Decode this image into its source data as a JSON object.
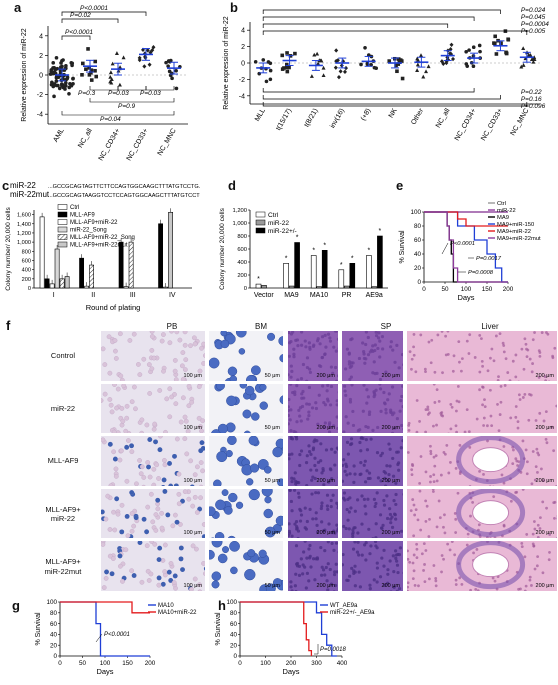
{
  "panels": {
    "a": {
      "label": "a",
      "ylabel": "Relative expression of miR-22",
      "ylim": [
        -5,
        5
      ],
      "yticks": [
        "-4",
        "-2",
        "0",
        "2",
        "4"
      ],
      "categories": [
        "AML",
        "NC_all",
        "NC_CD34+",
        "NC_CD33+",
        "NC_MNC"
      ],
      "pvals_top": [
        "P<0.0001",
        "P=0.02",
        "P<0.0001"
      ],
      "pvals_bottom": [
        "P=0.3",
        "P=0.03",
        "P=0.03",
        "P=0.9",
        "P=0.04"
      ]
    },
    "b": {
      "label": "b",
      "ylabel": "Relative expression of miR-22",
      "ylim": [
        -5,
        5
      ],
      "yticks": [
        "-4",
        "-2",
        "0",
        "2",
        "4"
      ],
      "categories": [
        "MLL",
        "t(15/17)",
        "t(8/21)",
        "inv(16)",
        "(+8)",
        "NK",
        "Other",
        "NC_all",
        "NC_CD34+",
        "NC_CD33+",
        "NC_MNC"
      ],
      "pvals_top": [
        "P=0.024",
        "P=0.045",
        "P=0.0004",
        "P=0.005"
      ],
      "pvals_bottom": [
        "P=0.22",
        "P=0.16",
        "P=0.096"
      ]
    },
    "c": {
      "label": "c",
      "seq_wt_label": "miR-22",
      "seq_mut_label": "miR-22mut",
      "seq_wt": "...GCCGCAGTAGTTCTTCCAGTGGCAAGCTTTATGTCCTG...",
      "seq_mut": "...GCCGCAGTAAGGTCCTCCAGTGGCAAGCTTTATGTCCTG...",
      "ylabel": "Colony number/ 20,000 cells",
      "xlabel": "Round of plating",
      "yticks": [
        "0",
        "200",
        "400",
        "600",
        "800",
        "1,000",
        "1,200",
        "1,400",
        "1,600"
      ],
      "categories": [
        "I",
        "II",
        "III",
        "IV"
      ],
      "legend": [
        "Ctrl",
        "MLL-AF9",
        "MLL-AF9+miR-22",
        "miR-22_Song",
        "MLL-AF9+miR-22_Song",
        "MLL-AF9+miR-22mut"
      ]
    },
    "d": {
      "label": "d",
      "ylabel": "Colony number 20,000 cells",
      "yticks": [
        "0",
        "200",
        "400",
        "600",
        "800",
        "1,000",
        "1,200"
      ],
      "categories": [
        "Vector",
        "MA9",
        "MA10",
        "PR",
        "AE9a"
      ],
      "legend": [
        "Ctrl",
        "miR-22",
        "miR-22+/-"
      ]
    },
    "e": {
      "label": "e",
      "ylabel": "% Survival",
      "xlabel": "Days",
      "yticks": [
        "0",
        "20",
        "40",
        "60",
        "80",
        "100"
      ],
      "xticks": [
        "0",
        "50",
        "100",
        "150",
        "200"
      ],
      "legend": [
        "Ctrl",
        "miR-22",
        "MA9",
        "MA9+miR-150",
        "MA9+miR-22",
        "MA9+miR-22mut"
      ],
      "pvals": [
        "P<0.0001",
        "P=0.0017",
        "P=0.0008"
      ]
    },
    "f": {
      "label": "f",
      "columns": [
        "PB",
        "BM",
        "SP",
        "Liver"
      ],
      "rows": [
        "Control",
        "miR-22",
        "MLL-AF9",
        "MLL-AF9+\nmiR-22",
        "MLL-AF9+\nmiR-22mut"
      ],
      "scale_pb": "100 μm",
      "scale_bm": "50 μm",
      "scale_sp": "200 μm",
      "scale_liver": "200 μm"
    },
    "g": {
      "label": "g",
      "ylabel": "% Survival",
      "xlabel": "Days",
      "yticks": [
        "0",
        "20",
        "40",
        "60",
        "80",
        "100"
      ],
      "xticks": [
        "0",
        "50",
        "100",
        "150",
        "200"
      ],
      "legend": [
        "MA10",
        "MA10+miR-22"
      ],
      "pval": "P<0.0001"
    },
    "h": {
      "label": "h",
      "ylabel": "% Survival",
      "xlabel": "Days",
      "yticks": [
        "0",
        "20",
        "40",
        "60",
        "80",
        "100"
      ],
      "xticks": [
        "0",
        "100",
        "200",
        "300",
        "400"
      ],
      "legend": [
        "WT_AE9a",
        "miR-22+/-_AE9a"
      ],
      "pval": "P=0.0018"
    }
  },
  "colors": {
    "blue": "#1f3fd6",
    "red": "#e31a1c",
    "black": "#000000",
    "gray": "#9a9a9a",
    "purple": "#8e3a9c",
    "histo_pb": "#e8e3ee",
    "histo_bm": "#f2f2f6",
    "histo_sp": "#8f5fb4",
    "histo_liver": "#e9b9d6"
  },
  "chart_data": [
    {
      "type": "scatter",
      "panel": "a",
      "categories": [
        "AML",
        "NC_all",
        "NC_CD34+",
        "NC_CD33+",
        "NC_MNC"
      ],
      "means": [
        0.0,
        0.9,
        0.6,
        2.1,
        0.7
      ],
      "ylim": [
        -5,
        5
      ],
      "ylabel": "Relative expression of miR-22"
    },
    {
      "type": "scatter",
      "panel": "b",
      "categories": [
        "MLL",
        "t(15/17)",
        "t(8/21)",
        "inv(16)",
        "(+8)",
        "NK",
        "Other",
        "NC_all",
        "NC_CD34+",
        "NC_CD33+",
        "NC_MNC"
      ],
      "means": [
        -0.6,
        0.3,
        -0.3,
        0.0,
        0.2,
        0.0,
        0.1,
        0.9,
        0.6,
        2.1,
        0.7
      ],
      "ylim": [
        -5,
        5
      ],
      "ylabel": "Relative expression of miR-22"
    },
    {
      "type": "bar",
      "panel": "c",
      "categories": [
        "I",
        "II",
        "III",
        "IV"
      ],
      "ylim": [
        0,
        1700
      ],
      "xlabel": "Round of plating",
      "ylabel": "Colony number/ 20,000 cells",
      "series": [
        {
          "name": "Ctrl",
          "values": [
            1550,
            0,
            0,
            0
          ]
        },
        {
          "name": "MLL-AF9",
          "values": [
            200,
            650,
            1000,
            1400
          ]
        },
        {
          "name": "MLL-AF9+miR-22",
          "values": [
            90,
            40,
            30,
            20
          ]
        },
        {
          "name": "miR-22_Song",
          "values": [
            850,
            0,
            0,
            0
          ]
        },
        {
          "name": "MLL-AF9+miR-22_Song",
          "values": [
            200,
            500,
            1000,
            0
          ]
        },
        {
          "name": "MLL-AF9+miR-22mut",
          "values": [
            250,
            0,
            0,
            1650
          ]
        }
      ]
    },
    {
      "type": "bar",
      "panel": "d",
      "categories": [
        "Vector",
        "MA9",
        "MA10",
        "PR",
        "AE9a"
      ],
      "ylim": [
        0,
        1200
      ],
      "ylabel": "Colony number 20,000 cells",
      "series": [
        {
          "name": "Ctrl",
          "values": [
            60,
            380,
            500,
            280,
            500
          ]
        },
        {
          "name": "miR-22",
          "values": [
            40,
            30,
            20,
            30,
            20
          ]
        },
        {
          "name": "miR-22+/-",
          "values": [
            0,
            700,
            580,
            380,
            800
          ]
        }
      ]
    },
    {
      "type": "line",
      "panel": "e",
      "xlabel": "Days",
      "ylabel": "% Survival",
      "ylim": [
        0,
        100
      ],
      "xlim": [
        0,
        200
      ],
      "series": [
        {
          "name": "Ctrl",
          "x": [
            0,
            200
          ],
          "y": [
            100,
            100
          ]
        },
        {
          "name": "miR-22",
          "x": [
            0,
            200
          ],
          "y": [
            100,
            100
          ]
        },
        {
          "name": "MA9",
          "x": [
            0,
            45,
            55,
            60,
            65,
            70,
            200
          ],
          "y": [
            100,
            100,
            80,
            60,
            40,
            0,
            0
          ]
        },
        {
          "name": "MA9+miR-150",
          "x": [
            0,
            60,
            80,
            120,
            150,
            170,
            185,
            200
          ],
          "y": [
            100,
            100,
            80,
            60,
            40,
            20,
            0,
            0
          ]
        },
        {
          "name": "MA9+miR-22",
          "x": [
            0,
            60,
            80,
            100,
            200
          ],
          "y": [
            100,
            100,
            90,
            80,
            80
          ]
        },
        {
          "name": "MA9+miR-22mut",
          "x": [
            0,
            45,
            55,
            60,
            70,
            80,
            200
          ],
          "y": [
            100,
            100,
            80,
            60,
            20,
            0,
            0
          ]
        }
      ]
    },
    {
      "type": "line",
      "panel": "g",
      "xlabel": "Days",
      "ylabel": "% Survival",
      "ylim": [
        0,
        100
      ],
      "xlim": [
        0,
        200
      ],
      "series": [
        {
          "name": "MA10",
          "x": [
            0,
            70,
            80,
            90,
            200
          ],
          "y": [
            100,
            100,
            60,
            0,
            0
          ]
        },
        {
          "name": "MA10+miR-22",
          "x": [
            0,
            150,
            160,
            200
          ],
          "y": [
            100,
            100,
            80,
            80
          ]
        }
      ]
    },
    {
      "type": "line",
      "panel": "h",
      "xlabel": "Days",
      "ylabel": "% Survival",
      "ylim": [
        0,
        100
      ],
      "xlim": [
        0,
        400
      ],
      "series": [
        {
          "name": "WT_AE9a",
          "x": [
            0,
            270,
            300,
            320,
            340,
            360,
            380
          ],
          "y": [
            100,
            100,
            80,
            40,
            20,
            0,
            0
          ]
        },
        {
          "name": "miR-22+/-_AE9a",
          "x": [
            0,
            230,
            250,
            260,
            270,
            280
          ],
          "y": [
            100,
            100,
            60,
            30,
            10,
            0
          ]
        }
      ]
    }
  ]
}
